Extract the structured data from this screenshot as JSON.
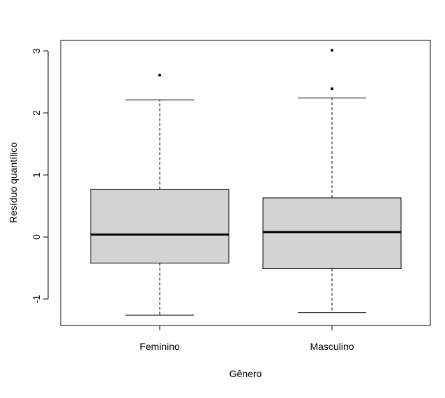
{
  "chart_data": {
    "type": "boxplot",
    "title": "",
    "xlabel": "Gênero",
    "ylabel": "Resíduo quantílico",
    "ylim": [
      -1.45,
      3.1
    ],
    "y_ticks": [
      -1,
      0,
      1,
      2,
      3
    ],
    "y_tick_labels": [
      "-1",
      "0",
      "1",
      "2",
      "3"
    ],
    "grid": false,
    "categories": [
      "Feminino",
      "Masculino"
    ],
    "boxes": [
      {
        "label": "Feminino",
        "whisker_low": -1.26,
        "q1": -0.42,
        "median": 0.04,
        "q3": 0.77,
        "whisker_high": 2.21,
        "outliers": [
          2.61
        ]
      },
      {
        "label": "Masculino",
        "whisker_low": -1.22,
        "q1": -0.51,
        "median": 0.08,
        "q3": 0.63,
        "whisker_high": 2.24,
        "outliers": [
          2.39,
          3.01
        ]
      }
    ],
    "colors": {
      "box_fill": "#d3d3d3",
      "stroke": "#000000"
    }
  }
}
